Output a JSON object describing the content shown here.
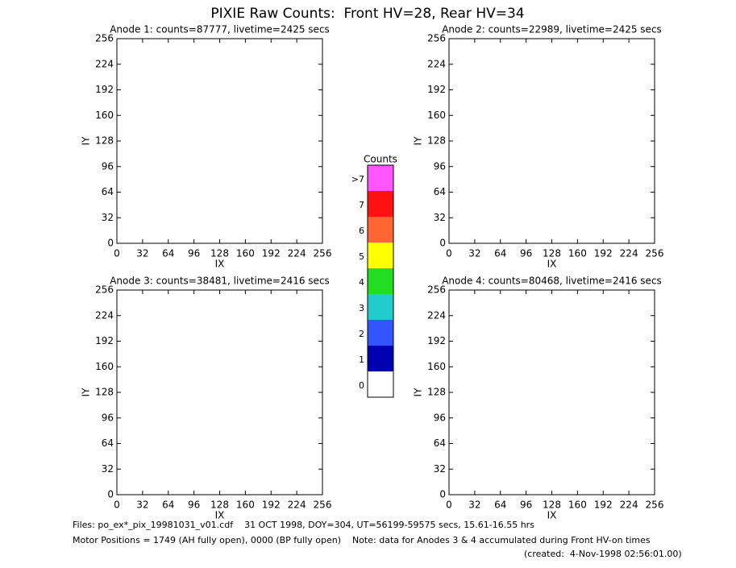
{
  "title": "PIXIE Raw Counts:  Front HV=28, Rear HV=34",
  "chart_data": [
    {
      "type": "heatmap",
      "title": "Anode 1: counts=87777, livetime=2425 secs",
      "xlabel": "IX",
      "ylabel": "IY",
      "xlim": [
        0,
        256
      ],
      "ylim": [
        0,
        256
      ],
      "xticks": [
        0,
        32,
        64,
        96,
        128,
        160,
        192,
        224,
        256
      ],
      "yticks": [
        0,
        32,
        64,
        96,
        128,
        160,
        192,
        224,
        256
      ]
    },
    {
      "type": "heatmap",
      "title": "Anode 2: counts=22989, livetime=2425 secs",
      "xlabel": "IX",
      "ylabel": "IY",
      "xlim": [
        0,
        256
      ],
      "ylim": [
        0,
        256
      ],
      "xticks": [
        0,
        32,
        64,
        96,
        128,
        160,
        192,
        224,
        256
      ],
      "yticks": [
        0,
        32,
        64,
        96,
        128,
        160,
        192,
        224,
        256
      ]
    },
    {
      "type": "heatmap",
      "title": "Anode 3: counts=38481, livetime=2416 secs",
      "xlabel": "IX",
      "ylabel": "IY",
      "xlim": [
        0,
        256
      ],
      "ylim": [
        0,
        256
      ],
      "xticks": [
        0,
        32,
        64,
        96,
        128,
        160,
        192,
        224,
        256
      ],
      "yticks": [
        0,
        32,
        64,
        96,
        128,
        160,
        192,
        224,
        256
      ]
    },
    {
      "type": "heatmap",
      "title": "Anode 4: counts=80468, livetime=2416 secs",
      "xlabel": "IX",
      "ylabel": "IY",
      "xlim": [
        0,
        256
      ],
      "ylim": [
        0,
        256
      ],
      "xticks": [
        0,
        32,
        64,
        96,
        128,
        160,
        192,
        224,
        256
      ],
      "yticks": [
        0,
        32,
        64,
        96,
        128,
        160,
        192,
        224,
        256
      ]
    }
  ],
  "colorbar": {
    "title": "Counts",
    "levels": [
      {
        "label": "0",
        "color": "#ffffff"
      },
      {
        "label": "1",
        "color": "#0000b0"
      },
      {
        "label": "2",
        "color": "#3355ff"
      },
      {
        "label": "3",
        "color": "#22cccc"
      },
      {
        "label": "4",
        "color": "#22dd22"
      },
      {
        "label": "5",
        "color": "#ffff00"
      },
      {
        "label": "6",
        "color": "#ff6633"
      },
      {
        "label": "7",
        "color": "#ff1111"
      },
      {
        "label": ">7",
        "color": "#ff55ff"
      }
    ]
  },
  "footer": [
    "Files: po_ex*_pix_19981031_v01.cdf    31 OCT 1998, DOY=304, UT=56199-59575 secs, 15.61-16.55 hrs",
    "Motor Positions = 1749 (AH fully open), 0000 (BP fully open)    Note: data for Anodes 3 & 4 accumulated during Front HV-on times",
    "(created:  4-Nov-1998 02:56:01.00)"
  ]
}
